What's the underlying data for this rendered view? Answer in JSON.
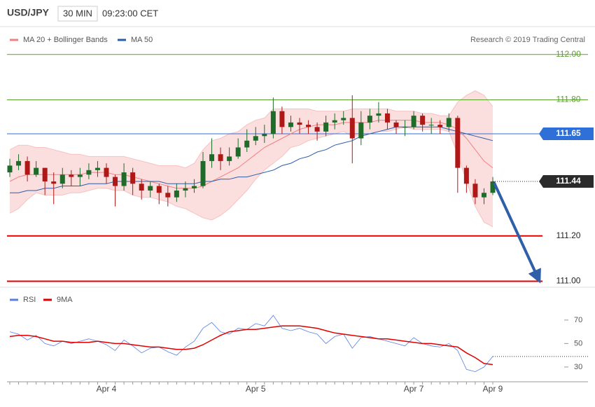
{
  "header": {
    "symbol": "USD/JPY",
    "interval": "30 MIN",
    "time": "09:23:00 CET",
    "copyright": "Research © 2019 Trading Central"
  },
  "chart_data": [
    {
      "type": "candlestick",
      "up_color": "#1e6b2a",
      "down_color": "#b01818",
      "open": [
        111.48,
        111.51,
        111.53,
        111.47,
        111.5,
        111.44,
        111.43,
        111.47,
        111.46,
        111.47,
        111.49,
        111.5,
        111.46,
        111.42,
        111.48,
        111.43,
        111.4,
        111.42,
        111.39,
        111.37,
        111.4,
        111.41,
        111.42,
        111.53,
        111.56,
        111.53,
        111.55,
        111.59,
        111.62,
        111.64,
        111.65,
        111.75,
        111.68,
        111.7,
        111.69,
        111.68,
        111.66,
        111.7,
        111.71,
        111.72,
        111.63,
        111.7,
        111.73,
        111.74,
        111.7,
        111.68,
        111.68,
        111.73,
        111.69,
        111.69,
        111.68,
        111.72,
        111.5,
        111.43,
        111.37,
        111.39
      ],
      "high": [
        111.54,
        111.56,
        111.55,
        111.53,
        111.5,
        111.48,
        111.5,
        111.49,
        111.5,
        111.52,
        111.53,
        111.52,
        111.47,
        111.52,
        111.5,
        111.45,
        111.44,
        111.43,
        111.42,
        111.43,
        111.44,
        111.45,
        111.57,
        111.63,
        111.59,
        111.59,
        111.63,
        111.67,
        111.68,
        111.69,
        111.81,
        111.77,
        111.73,
        111.72,
        111.71,
        111.7,
        111.73,
        111.74,
        111.75,
        111.82,
        111.75,
        111.76,
        111.79,
        111.76,
        111.71,
        111.71,
        111.75,
        111.74,
        111.72,
        111.71,
        111.74,
        111.73,
        111.51,
        111.45,
        111.41,
        111.46
      ],
      "low": [
        111.46,
        111.49,
        111.44,
        111.46,
        111.38,
        111.34,
        111.41,
        111.42,
        111.42,
        111.45,
        111.46,
        111.43,
        111.33,
        111.4,
        111.38,
        111.36,
        111.37,
        111.34,
        111.33,
        111.35,
        111.37,
        111.39,
        111.41,
        111.5,
        111.49,
        111.51,
        111.54,
        111.57,
        111.6,
        111.61,
        111.63,
        111.65,
        111.66,
        111.65,
        111.65,
        111.62,
        111.64,
        111.67,
        111.69,
        111.52,
        111.6,
        111.67,
        111.7,
        111.67,
        111.65,
        111.64,
        111.67,
        111.66,
        111.65,
        111.65,
        111.66,
        111.39,
        111.39,
        111.34,
        111.34,
        111.38
      ],
      "close": [
        111.51,
        111.53,
        111.47,
        111.5,
        111.44,
        111.43,
        111.47,
        111.46,
        111.47,
        111.49,
        111.5,
        111.46,
        111.42,
        111.48,
        111.43,
        111.4,
        111.42,
        111.39,
        111.37,
        111.4,
        111.41,
        111.42,
        111.53,
        111.56,
        111.53,
        111.55,
        111.59,
        111.62,
        111.64,
        111.65,
        111.75,
        111.68,
        111.7,
        111.69,
        111.68,
        111.66,
        111.7,
        111.71,
        111.72,
        111.63,
        111.7,
        111.73,
        111.74,
        111.7,
        111.68,
        111.68,
        111.73,
        111.69,
        111.69,
        111.68,
        111.72,
        111.5,
        111.43,
        111.37,
        111.39,
        111.44
      ],
      "series": [
        {
          "name": "MA 20 + Bollinger Bands",
          "color": "#f08080",
          "values": [
            111.44,
            111.46,
            111.47,
            111.47,
            111.47,
            111.47,
            111.47,
            111.47,
            111.47,
            111.48,
            111.48,
            111.48,
            111.47,
            111.47,
            111.46,
            111.45,
            111.44,
            111.43,
            111.42,
            111.41,
            111.41,
            111.41,
            111.42,
            111.44,
            111.46,
            111.48,
            111.5,
            111.53,
            111.56,
            111.59,
            111.61,
            111.63,
            111.65,
            111.67,
            111.68,
            111.69,
            111.69,
            111.69,
            111.7,
            111.7,
            111.7,
            111.7,
            111.71,
            111.71,
            111.71,
            111.71,
            111.71,
            111.7,
            111.7,
            111.7,
            111.69,
            111.67,
            111.63,
            111.58,
            111.53,
            111.5
          ],
          "upper": [
            111.58,
            111.6,
            111.6,
            111.59,
            111.59,
            111.58,
            111.57,
            111.56,
            111.56,
            111.55,
            111.55,
            111.55,
            111.55,
            111.55,
            111.54,
            111.53,
            111.52,
            111.51,
            111.51,
            111.51,
            111.5,
            111.52,
            111.58,
            111.62,
            111.63,
            111.65,
            111.66,
            111.69,
            111.71,
            111.72,
            111.76,
            111.76,
            111.76,
            111.76,
            111.76,
            111.75,
            111.75,
            111.75,
            111.75,
            111.76,
            111.76,
            111.76,
            111.76,
            111.76,
            111.75,
            111.75,
            111.75,
            111.74,
            111.74,
            111.73,
            111.73,
            111.79,
            111.82,
            111.84,
            111.82,
            111.77
          ],
          "lower": [
            111.3,
            111.32,
            111.36,
            111.39,
            111.38,
            111.38,
            111.38,
            111.39,
            111.39,
            111.4,
            111.41,
            111.41,
            111.4,
            111.4,
            111.38,
            111.37,
            111.37,
            111.36,
            111.35,
            111.33,
            111.32,
            111.3,
            111.28,
            111.27,
            111.29,
            111.32,
            111.36,
            111.4,
            111.45,
            111.49,
            111.52,
            111.55,
            111.59,
            111.6,
            111.62,
            111.63,
            111.64,
            111.65,
            111.66,
            111.64,
            111.64,
            111.65,
            111.66,
            111.66,
            111.67,
            111.68,
            111.67,
            111.67,
            111.67,
            111.67,
            111.66,
            111.56,
            111.44,
            111.33,
            111.26,
            111.24
          ]
        },
        {
          "name": "MA 50",
          "color": "#2a5caa",
          "values": [
            111.39,
            111.39,
            111.4,
            111.4,
            111.41,
            111.41,
            111.42,
            111.42,
            111.42,
            111.43,
            111.43,
            111.43,
            111.44,
            111.44,
            111.44,
            111.44,
            111.44,
            111.44,
            111.43,
            111.43,
            111.43,
            111.43,
            111.44,
            111.44,
            111.45,
            111.45,
            111.46,
            111.46,
            111.47,
            111.48,
            111.49,
            111.51,
            111.52,
            111.54,
            111.55,
            111.57,
            111.58,
            111.6,
            111.61,
            111.62,
            111.64,
            111.65,
            111.66,
            111.67,
            111.68,
            111.68,
            111.68,
            111.68,
            111.68,
            111.68,
            111.67,
            111.66,
            111.65,
            111.64,
            111.63,
            111.62
          ]
        }
      ],
      "ylim": [
        110.98,
        112.03
      ],
      "levels": [
        {
          "value": 112.0,
          "label": "112.00",
          "color": "#5aa02c"
        },
        {
          "value": 111.8,
          "label": "111.80",
          "color": "#5aa02c"
        },
        {
          "value": 111.65,
          "label": "111.65",
          "color": "#2f6fd8",
          "boxed": true
        },
        {
          "value": 111.2,
          "label": "111.20",
          "color": "#e00000"
        },
        {
          "value": 111.0,
          "label": "111.00",
          "color": "#e00000"
        }
      ],
      "last_price": {
        "value": 111.44,
        "label": "111.44",
        "color": "#2b2b2b"
      }
    },
    {
      "type": "line",
      "categories": [
        null,
        null,
        null,
        null,
        null,
        null,
        null,
        null,
        null,
        null,
        null,
        "Apr 4",
        null,
        null,
        null,
        null,
        null,
        null,
        null,
        null,
        null,
        null,
        null,
        null,
        null,
        null,
        null,
        null,
        "Apr 5",
        null,
        null,
        null,
        null,
        null,
        null,
        null,
        null,
        null,
        null,
        null,
        null,
        null,
        null,
        null,
        null,
        null,
        "Apr 7",
        null,
        null,
        null,
        null,
        null,
        null,
        null,
        null,
        "Apr 9"
      ],
      "series": [
        {
          "name": "RSI",
          "color": "#5b7fe0",
          "values": [
            60,
            58,
            53,
            57,
            50,
            48,
            52,
            50,
            52,
            54,
            52,
            49,
            44,
            53,
            48,
            42,
            46,
            47,
            43,
            40,
            47,
            52,
            63,
            68,
            60,
            58,
            63,
            62,
            67,
            65,
            74,
            63,
            61,
            63,
            60,
            58,
            50,
            56,
            58,
            46,
            55,
            56,
            54,
            52,
            50,
            48,
            55,
            50,
            48,
            47,
            50,
            44,
            28,
            26,
            30,
            39
          ]
        },
        {
          "name": "9MA",
          "color": "#e00000",
          "values": [
            56,
            57,
            57,
            56,
            54,
            52,
            52,
            51,
            51,
            51,
            52,
            51,
            50,
            50,
            49,
            48,
            47,
            47,
            46,
            45,
            45,
            46,
            49,
            53,
            57,
            60,
            61,
            62,
            62,
            63,
            64,
            65,
            65,
            65,
            64,
            63,
            61,
            59,
            58,
            57,
            56,
            55,
            54,
            54,
            53,
            52,
            51,
            50,
            50,
            49,
            48,
            47,
            42,
            38,
            33,
            32
          ]
        }
      ],
      "ylim": [
        18,
        98
      ],
      "yticks": [
        30,
        50,
        70
      ]
    }
  ]
}
